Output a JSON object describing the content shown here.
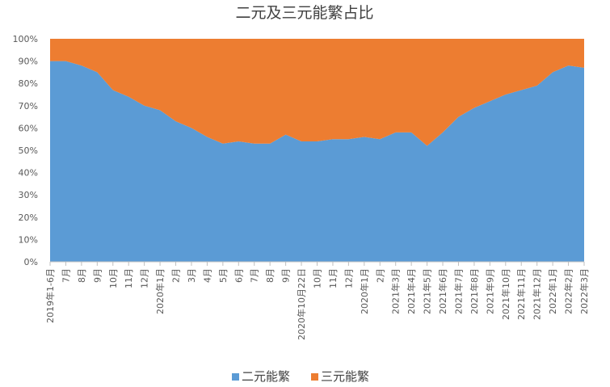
{
  "chart_data": {
    "type": "area",
    "stacked": true,
    "percent_stacked": true,
    "title": "二元及三元能繁占比",
    "categories": [
      "2019年1-6月",
      "7月",
      "8月",
      "9月",
      "10月",
      "11月",
      "12月",
      "2020年1月",
      "2月",
      "3月",
      "4月",
      "5月",
      "6月",
      "7月",
      "8月",
      "9月",
      "2020年10月22日",
      "10月",
      "11月",
      "12月",
      "2020年1月",
      "2月",
      "2021年3月",
      "2021年4月",
      "2021年5月",
      "2021年6月",
      "2021年7月",
      "2021年8月",
      "2021年9月",
      "2021年10月",
      "2021年11月",
      "2021年12月",
      "2022年1月",
      "2022年2月",
      "2022年3月"
    ],
    "series": [
      {
        "name": "二元能繁",
        "color": "#5B9BD5",
        "values": [
          90,
          90,
          88,
          85,
          77,
          74,
          70,
          68,
          63,
          60,
          56,
          53,
          54,
          53,
          53,
          57,
          54,
          54,
          55,
          55,
          56,
          55,
          58,
          58,
          52,
          58,
          65,
          69,
          72,
          75,
          77,
          79,
          85,
          88,
          87
        ]
      },
      {
        "name": "三元能繁",
        "color": "#ED7D31",
        "values": [
          10,
          10,
          12,
          15,
          23,
          26,
          30,
          32,
          37,
          40,
          44,
          47,
          46,
          47,
          47,
          43,
          46,
          46,
          45,
          45,
          44,
          45,
          42,
          42,
          48,
          42,
          35,
          31,
          28,
          25,
          23,
          21,
          15,
          12,
          13
        ]
      }
    ],
    "y_ticks": [
      "0%",
      "10%",
      "20%",
      "30%",
      "40%",
      "50%",
      "60%",
      "70%",
      "80%",
      "90%",
      "100%"
    ],
    "ylim": [
      0,
      100
    ],
    "grid": false,
    "legend_position": "bottom"
  }
}
